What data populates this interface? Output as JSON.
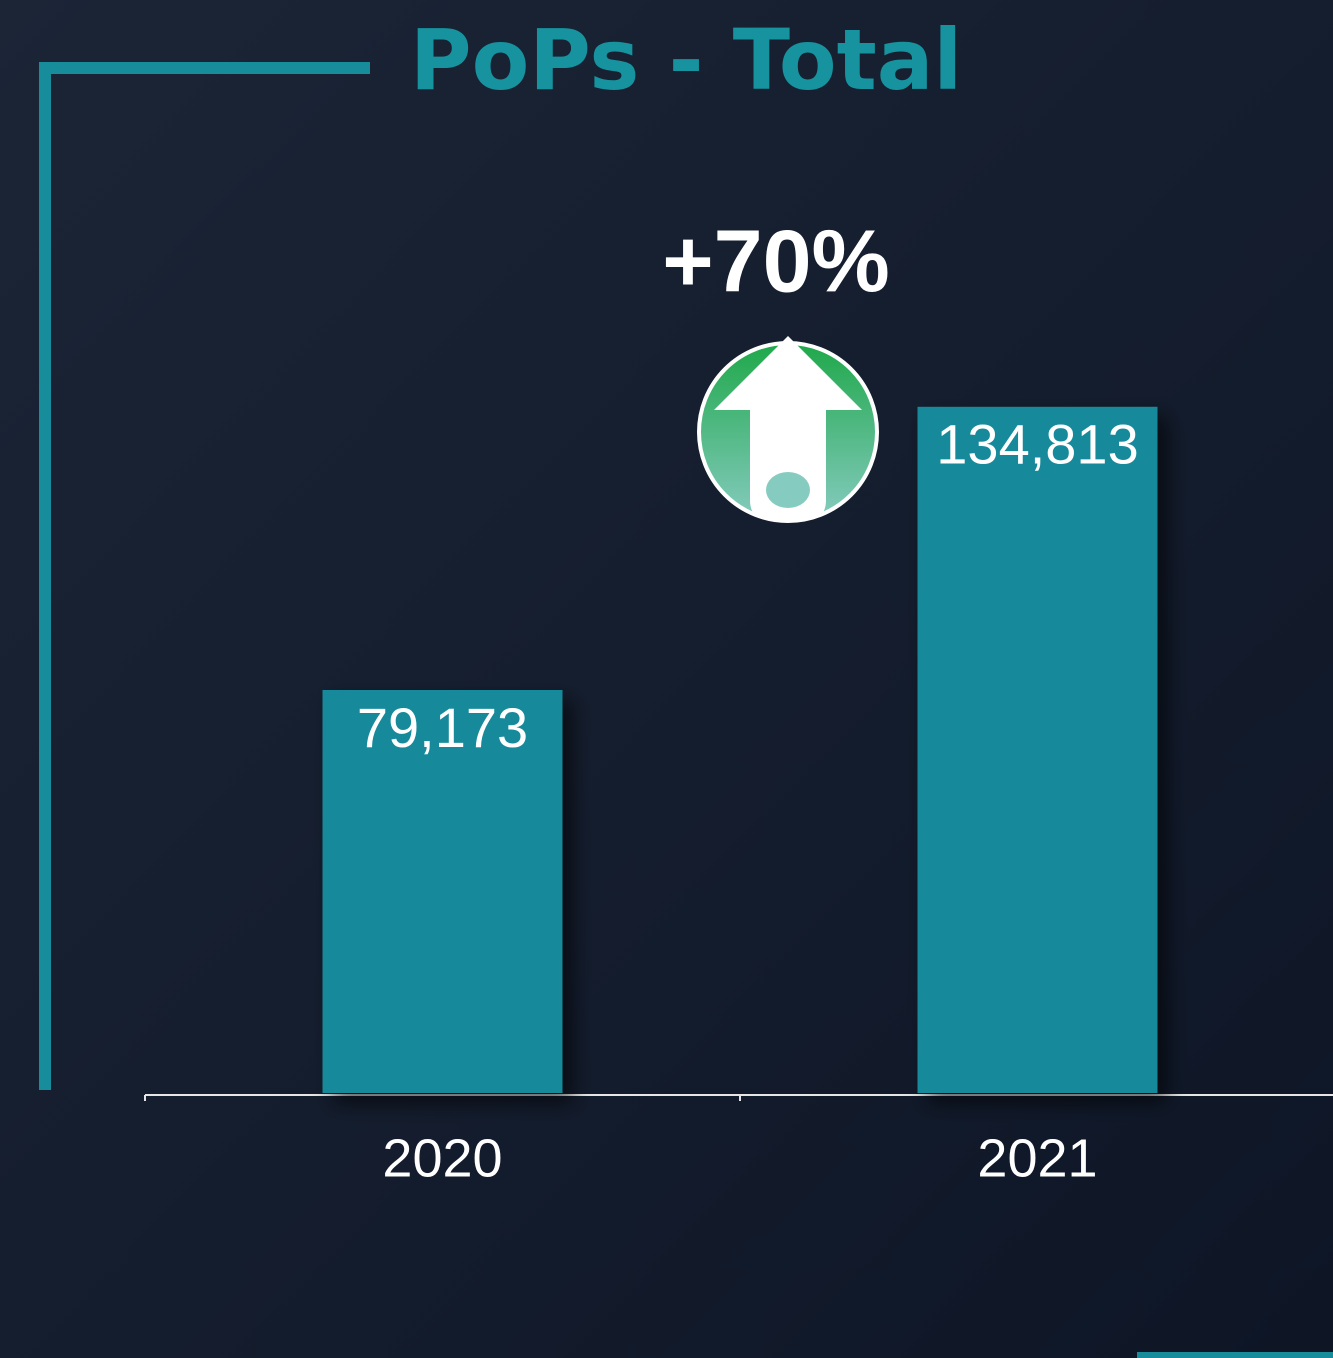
{
  "chart_data": {
    "type": "bar",
    "title": "PoPs - Total",
    "annotation": "+70%",
    "categories": [
      "2020",
      "2021"
    ],
    "values": [
      79173,
      134813
    ],
    "value_labels": [
      "79,173",
      "134,813"
    ],
    "color": "#138a9b",
    "ylim": [
      0,
      200000
    ]
  }
}
